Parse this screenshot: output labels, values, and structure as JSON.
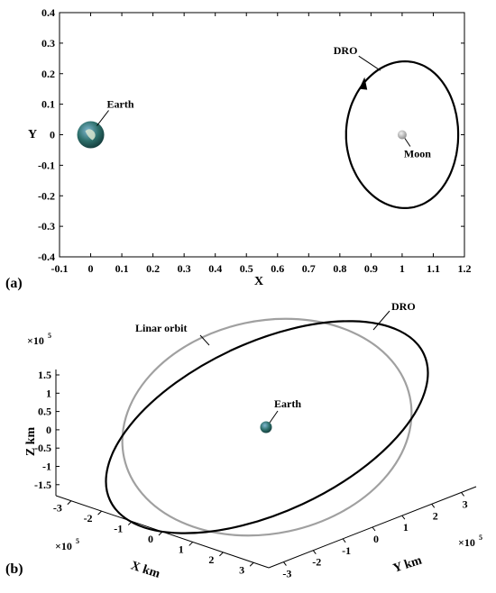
{
  "chart_data": [
    {
      "panel_label": "(a)",
      "type": "line",
      "xlabel": "X",
      "ylabel": "Y",
      "xlim": [
        -0.1,
        1.2
      ],
      "ylim": [
        -0.4,
        0.4
      ],
      "xticks": [
        "-0.1",
        "0",
        "0.1",
        "0.2",
        "0.3",
        "0.4",
        "0.5",
        "0.6",
        "0.7",
        "0.8",
        "0.9",
        "1",
        "1.1",
        "1.2"
      ],
      "yticks": [
        "0.4",
        "0.3",
        "0.2",
        "0.1",
        "0",
        "-0.1",
        "-0.2",
        "-0.3",
        "-0.4"
      ],
      "grid": false,
      "orbit": {
        "label": "DRO",
        "center": [
          1.0,
          0.0
        ],
        "semi_axis_x": 0.18,
        "semi_axis_y": 0.24,
        "color": "#000000"
      },
      "bodies": [
        {
          "label": "Earth",
          "x": 0.0,
          "y": 0.0,
          "color": "#2d6f6a"
        },
        {
          "label": "Moon",
          "x": 1.0,
          "y": 0.0,
          "color": "#bbbbbb"
        }
      ]
    },
    {
      "panel_label": "(b)",
      "type": "line3d",
      "xlabel": "X km",
      "ylabel": "Y km",
      "zlabel": "Z km",
      "exponent_base": "×10",
      "exponent_power": "5",
      "zticks": [
        "1.5",
        "1",
        "0.5",
        "0",
        "-0.5",
        "-1",
        "-1.5"
      ],
      "xticks": [
        "-3",
        "-2",
        "-1",
        "0",
        "1",
        "2",
        "3"
      ],
      "yticks": [
        "-3",
        "-2",
        "-1",
        "0",
        "1",
        "2",
        "3"
      ],
      "series": [
        {
          "name": "DRO",
          "color": "#000000"
        },
        {
          "name": "Linar orbit",
          "color": "#a0a0a0"
        }
      ],
      "body": {
        "label": "Earth",
        "color": "#2d6f6a"
      }
    }
  ]
}
